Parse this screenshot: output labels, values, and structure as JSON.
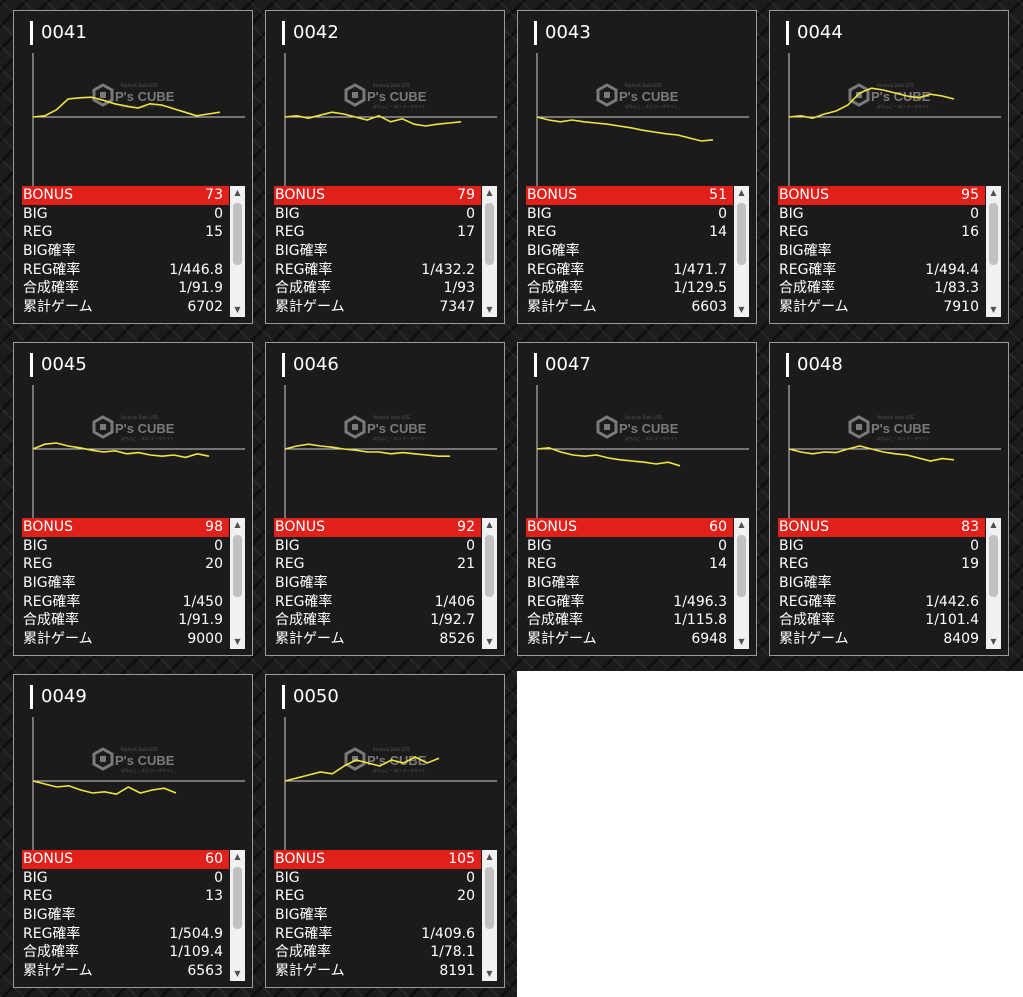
{
  "labels": {
    "bonus": "BONUS",
    "big": "BIG",
    "reg": "REG",
    "big_rate": "BIG確率",
    "reg_rate": "REG確率",
    "combined_rate": "合成確率",
    "total_games": "累計ゲーム"
  },
  "logo": {
    "brand": "P's CUBE",
    "tagline_top": "Pachislo Data SITE",
    "tagline_bottom": "ぱちんこ・スロ データサイト"
  },
  "colors": {
    "graph_line": "#f0e442",
    "bonus_row": "#e0201a"
  },
  "machines": [
    {
      "id": "0041",
      "bonus": "73",
      "big": "0",
      "reg": "15",
      "big_rate": "",
      "reg_rate": "1/446.8",
      "combined_rate": "1/91.9",
      "total_games": "6702",
      "graph": [
        0.0,
        0.02,
        0.12,
        0.3,
        0.32,
        0.33,
        0.28,
        0.22,
        0.18,
        0.15,
        0.22,
        0.2,
        0.14,
        0.08,
        0.02,
        0.05,
        0.08
      ]
    },
    {
      "id": "0042",
      "bonus": "79",
      "big": "0",
      "reg": "17",
      "big_rate": "",
      "reg_rate": "1/432.2",
      "combined_rate": "1/93",
      "total_games": "7347",
      "graph": [
        0.0,
        0.02,
        -0.02,
        0.03,
        0.08,
        0.05,
        0.0,
        -0.05,
        0.02,
        -0.08,
        -0.03,
        -0.12,
        -0.15,
        -0.12,
        -0.1,
        -0.08
      ]
    },
    {
      "id": "0043",
      "bonus": "51",
      "big": "0",
      "reg": "14",
      "big_rate": "",
      "reg_rate": "1/471.7",
      "combined_rate": "1/129.5",
      "total_games": "6603",
      "graph": [
        0.0,
        -0.05,
        -0.08,
        -0.05,
        -0.08,
        -0.1,
        -0.12,
        -0.15,
        -0.18,
        -0.22,
        -0.25,
        -0.28,
        -0.3,
        -0.35,
        -0.4,
        -0.38
      ]
    },
    {
      "id": "0044",
      "bonus": "95",
      "big": "0",
      "reg": "16",
      "big_rate": "",
      "reg_rate": "1/494.4",
      "combined_rate": "1/83.3",
      "total_games": "7910",
      "graph": [
        0.0,
        0.02,
        -0.02,
        0.05,
        0.1,
        0.2,
        0.4,
        0.48,
        0.45,
        0.4,
        0.35,
        0.32,
        0.38,
        0.35,
        0.3
      ]
    },
    {
      "id": "0045",
      "bonus": "98",
      "big": "0",
      "reg": "20",
      "big_rate": "",
      "reg_rate": "1/450",
      "combined_rate": "1/91.9",
      "total_games": "9000",
      "graph": [
        0.0,
        0.08,
        0.1,
        0.05,
        0.02,
        -0.02,
        -0.05,
        -0.03,
        -0.08,
        -0.06,
        -0.1,
        -0.12,
        -0.1,
        -0.14,
        -0.08,
        -0.12
      ]
    },
    {
      "id": "0046",
      "bonus": "92",
      "big": "0",
      "reg": "21",
      "big_rate": "",
      "reg_rate": "1/406",
      "combined_rate": "1/92.7",
      "total_games": "8526",
      "graph": [
        0.0,
        0.05,
        0.08,
        0.05,
        0.03,
        0.0,
        -0.02,
        -0.05,
        -0.05,
        -0.08,
        -0.06,
        -0.08,
        -0.1,
        -0.12,
        -0.12
      ]
    },
    {
      "id": "0047",
      "bonus": "60",
      "big": "0",
      "reg": "14",
      "big_rate": "",
      "reg_rate": "1/496.3",
      "combined_rate": "1/115.8",
      "total_games": "6948",
      "graph": [
        0.0,
        0.02,
        -0.05,
        -0.1,
        -0.12,
        -0.1,
        -0.15,
        -0.18,
        -0.2,
        -0.22,
        -0.25,
        -0.22,
        -0.28
      ]
    },
    {
      "id": "0048",
      "bonus": "83",
      "big": "0",
      "reg": "19",
      "big_rate": "",
      "reg_rate": "1/442.6",
      "combined_rate": "1/101.4",
      "total_games": "8409",
      "graph": [
        0.0,
        -0.05,
        -0.08,
        -0.05,
        -0.06,
        0.0,
        0.05,
        0.0,
        -0.05,
        -0.08,
        -0.1,
        -0.15,
        -0.2,
        -0.16,
        -0.18
      ]
    },
    {
      "id": "0049",
      "bonus": "60",
      "big": "0",
      "reg": "13",
      "big_rate": "",
      "reg_rate": "1/504.9",
      "combined_rate": "1/109.4",
      "total_games": "6563",
      "graph": [
        0.0,
        -0.05,
        -0.1,
        -0.08,
        -0.15,
        -0.2,
        -0.18,
        -0.22,
        -0.1,
        -0.2,
        -0.15,
        -0.12,
        -0.2
      ]
    },
    {
      "id": "0050",
      "bonus": "105",
      "big": "0",
      "reg": "20",
      "big_rate": "",
      "reg_rate": "1/409.6",
      "combined_rate": "1/78.1",
      "total_games": "8191",
      "graph": [
        0.0,
        0.05,
        0.1,
        0.15,
        0.12,
        0.25,
        0.35,
        0.3,
        0.25,
        0.35,
        0.3,
        0.4,
        0.3,
        0.38
      ]
    }
  ]
}
